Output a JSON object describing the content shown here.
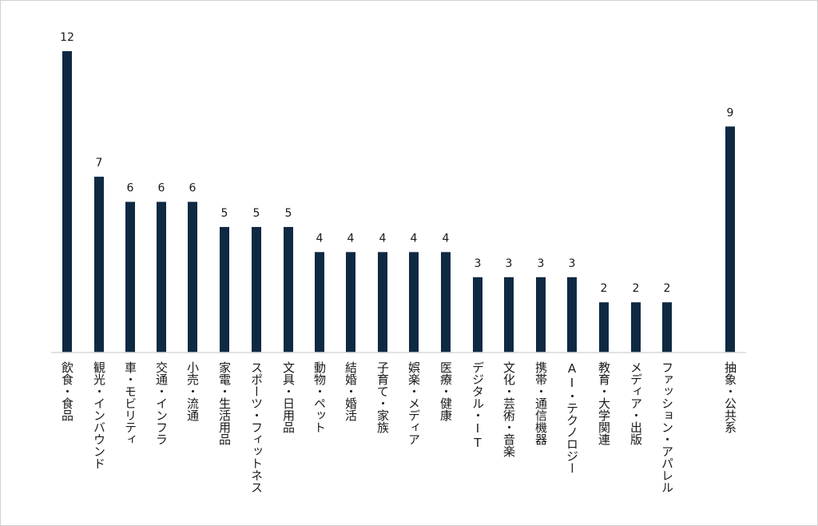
{
  "chart_data": {
    "type": "bar",
    "title": "",
    "xlabel": "",
    "ylabel": "",
    "ylim": [
      0,
      12.5
    ],
    "grid": false,
    "legend": "none",
    "bar_color": "#0f2942",
    "categories": [
      "飲食・食品",
      "観光・インバウンド",
      "車・モビリティ",
      "交通・インフラ",
      "小売・流通",
      "家電・生活用品",
      "スポーツ・フィットネス",
      "文具・日用品",
      "動物・ペット",
      "結婚・婚活",
      "子育て・家族",
      "娯楽・メディア",
      "医療・健康",
      "デジタル・IT",
      "文化・芸術・音楽",
      "携帯・通信機器",
      "AI・テクノロジー",
      "教育・大学関連",
      "メディア・出版",
      "ファッション・アパレル",
      "抽象・公共系"
    ],
    "values": [
      12,
      7,
      6,
      6,
      6,
      5,
      5,
      5,
      4,
      4,
      4,
      4,
      4,
      3,
      3,
      3,
      3,
      2,
      2,
      2,
      9
    ],
    "data_labels": [
      "12",
      "7",
      "6",
      "6",
      "6",
      "5",
      "5",
      "5",
      "4",
      "4",
      "4",
      "4",
      "4",
      "3",
      "3",
      "3",
      "3",
      "2",
      "2",
      "2",
      "9"
    ]
  }
}
